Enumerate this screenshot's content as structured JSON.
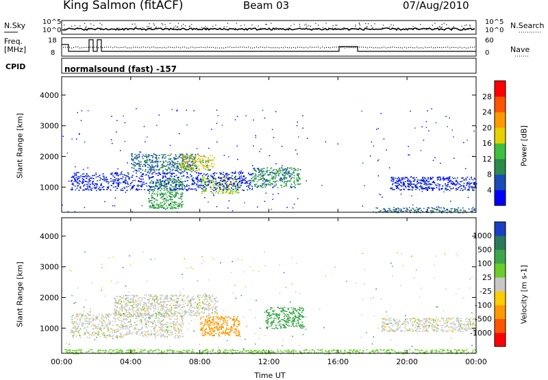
{
  "header": {
    "station": "King Salmon (fitACF)",
    "beam": "Beam 03",
    "date": "07/Aug/2010"
  },
  "top_panels": {
    "nsky_label": "N.Sky",
    "nsearch_label": "N.Search",
    "noise_ticks": [
      "10^5",
      "10^0"
    ],
    "freq_label": "Freq.",
    "freq_unit": "[MHz]",
    "freq_ticks": [
      "18",
      "8"
    ],
    "nave_label": "Nave",
    "nave_ticks": [
      "60",
      "0"
    ],
    "cpid_label": "CPID",
    "cpid_value": "normalsound (fast) -157"
  },
  "chart_data": [
    {
      "type": "heatmap",
      "title": "",
      "xlabel": "Time UT",
      "ylabel": "Slant Range [km]",
      "colorbar_label": "Power [dB]",
      "xlim": [
        0,
        24
      ],
      "ylim": [
        180,
        4600
      ],
      "x_tick_labels": [
        "00:00",
        "04:00",
        "08:00",
        "12:00",
        "16:00",
        "20:00",
        "00:00"
      ],
      "y_tick_labels": [
        "1000",
        "2000",
        "3000",
        "4000"
      ],
      "colorbar_ticks": [
        "4",
        "8",
        "12",
        "16",
        "20",
        "24",
        "28"
      ],
      "colorbar_colors": [
        "#0000ff",
        "#1a4bb8",
        "#2a8a4a",
        "#3fbf3f",
        "#e5d000",
        "#ff9900",
        "#ff5500",
        "#ff0000"
      ],
      "echo_regions": [
        {
          "t0": 4.0,
          "t1": 7.8,
          "r0": 1500,
          "r1": 2100,
          "level": 8
        },
        {
          "t0": 6.8,
          "t1": 8.8,
          "r0": 1550,
          "r1": 2050,
          "level": 18
        },
        {
          "t0": 8.0,
          "t1": 10.3,
          "r0": 800,
          "r1": 1350,
          "level": 16
        },
        {
          "t0": 5.0,
          "t1": 7.0,
          "r0": 300,
          "r1": 1300,
          "level": 12
        },
        {
          "t0": 11.0,
          "t1": 13.8,
          "r0": 1000,
          "r1": 1650,
          "level": 10
        },
        {
          "t0": 0.5,
          "t1": 11.0,
          "r0": 900,
          "r1": 1500,
          "level": 4
        },
        {
          "t0": 19.0,
          "t1": 24.0,
          "r0": 900,
          "r1": 1350,
          "level": 4
        },
        {
          "t0": 18.0,
          "t1": 24.0,
          "r0": 180,
          "r1": 350,
          "level": 8
        }
      ]
    },
    {
      "type": "heatmap",
      "title": "",
      "xlabel": "Time UT",
      "ylabel": "Slant Range [km]",
      "colorbar_label": "Velocity [m s-1]",
      "xlim": [
        0,
        24
      ],
      "ylim": [
        180,
        4600
      ],
      "x_tick_labels": [
        "00:00",
        "04:00",
        "08:00",
        "12:00",
        "16:00",
        "20:00",
        "00:00"
      ],
      "y_tick_labels": [
        "1000",
        "2000",
        "3000",
        "4000"
      ],
      "colorbar_ticks": [
        "1000",
        "500",
        "100",
        "25",
        "-25",
        "-100",
        "-500",
        "-1000"
      ],
      "colorbar_colors": [
        "#1a3fc4",
        "#2a7a5a",
        "#3aa84a",
        "#6acd2a",
        "#c8c8c8",
        "#ffcc00",
        "#ff9900",
        "#ff5500",
        "#ff0000"
      ],
      "echo_regions": [
        {
          "t0": 3.0,
          "t1": 9.0,
          "r0": 1400,
          "r1": 2100,
          "velocity": 0
        },
        {
          "t0": 8.0,
          "t1": 10.3,
          "r0": 750,
          "r1": 1400,
          "velocity": -300
        },
        {
          "t0": 11.8,
          "t1": 14.0,
          "r0": 1000,
          "r1": 1700,
          "velocity": 150
        },
        {
          "t0": 18.5,
          "t1": 24.0,
          "r0": 900,
          "r1": 1350,
          "velocity": 0
        },
        {
          "t0": 0.5,
          "t1": 7.0,
          "r0": 700,
          "r1": 1500,
          "velocity": 0
        },
        {
          "t0": 0.0,
          "t1": 24.0,
          "r0": 180,
          "r1": 320,
          "velocity": 60
        }
      ]
    }
  ]
}
